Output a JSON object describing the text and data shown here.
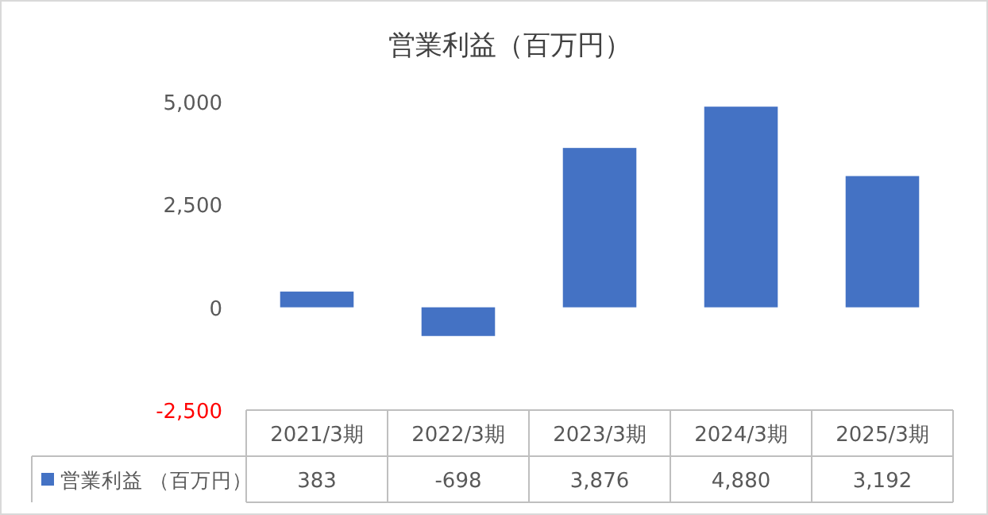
{
  "chart_data": {
    "type": "bar",
    "title": "営業利益（百万円）",
    "categories": [
      "2021/3期",
      "2022/3期",
      "2023/3期",
      "2024/3期",
      "2025/3期"
    ],
    "series": [
      {
        "name": "営業利益 （百万円）",
        "color": "#4472c4",
        "values": [
          383,
          -698,
          3876,
          4880,
          3192
        ],
        "value_labels": [
          "383",
          "-698",
          "3,876",
          "4,880",
          "3,192"
        ]
      }
    ],
    "ylim": [
      -2500,
      5000
    ],
    "yticks": [
      {
        "value": -2500,
        "label": "-2,500"
      },
      {
        "value": 0,
        "label": "0"
      },
      {
        "value": 2500,
        "label": "2,500"
      },
      {
        "value": 5000,
        "label": "5,000"
      }
    ],
    "legend": "bottom",
    "grid": false
  }
}
